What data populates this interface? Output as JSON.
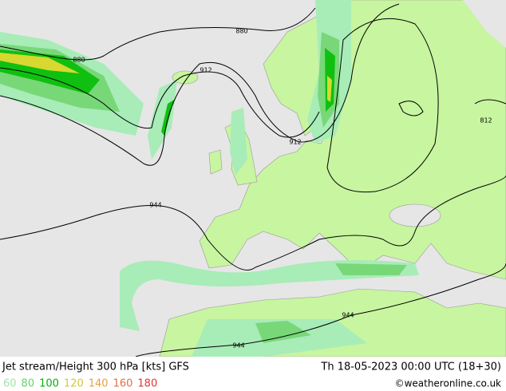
{
  "map": {
    "contour_labels": [
      "880",
      "880",
      "912",
      "912",
      "812",
      "944",
      "944",
      "944"
    ],
    "footer": {
      "title": "Jet stream/Height 300 hPa [kts] GFS",
      "valid_time": "Th 18-05-2023 00:00 UTC (18+30)",
      "credit": "©weatheronline.co.uk"
    },
    "legend": [
      {
        "label": "60",
        "color": "#a0e6a0"
      },
      {
        "label": "80",
        "color": "#64d264"
      },
      {
        "label": "100",
        "color": "#00b400"
      },
      {
        "label": "120",
        "color": "#d2c83c"
      },
      {
        "label": "140",
        "color": "#e6a03c"
      },
      {
        "label": "160",
        "color": "#e66e3c"
      },
      {
        "label": "180",
        "color": "#e63232"
      }
    ]
  }
}
